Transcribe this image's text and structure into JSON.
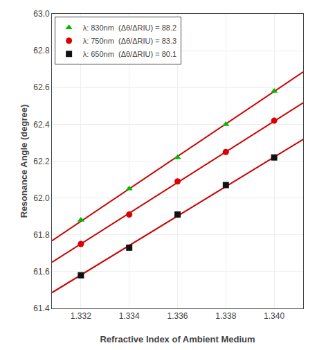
{
  "chart_data": {
    "type": "scatter",
    "xlabel": "Refractive Index of Ambient Medium",
    "ylabel": "Resonance Angle (degree)",
    "xlim": [
      1.3308,
      1.3412
    ],
    "ylim": [
      61.4,
      63.0
    ],
    "xticks": [
      1.332,
      1.334,
      1.336,
      1.338,
      {
        "value": 1.34,
        "label": "1.340"
      }
    ],
    "yticks": [
      61.4,
      61.6,
      61.8,
      {
        "value": 62.0,
        "label": "62.0"
      },
      62.2,
      62.4,
      62.6,
      62.8,
      {
        "value": 63.0,
        "label": "63.0"
      }
    ],
    "grid": true,
    "legend": "upper left",
    "series": [
      {
        "type": "line",
        "line_style": "solid",
        "color": "#cc0000",
        "x": [
          1.3308,
          1.3412
        ],
        "values": [
          61.76736,
          62.68464
        ]
      },
      {
        "type": "line",
        "line_style": "solid",
        "color": "#cc0000",
        "x": [
          1.3308,
          1.3412
        ],
        "values": [
          61.65084,
          62.51716
        ]
      },
      {
        "type": "line",
        "line_style": "solid",
        "color": "#cc0000",
        "x": [
          1.3308,
          1.3412
        ],
        "values": [
          61.48548,
          62.31852
        ]
      },
      {
        "type": "scatter",
        "name": "λ: 830nm  (Δθ/ΔRIU) = 88.2",
        "marker": "triangle-up",
        "color": "#00bb00",
        "x": [
          1.332,
          1.334,
          1.336,
          1.338,
          1.34
        ],
        "values": [
          61.88,
          62.05,
          62.22,
          62.4,
          62.58
        ]
      },
      {
        "type": "scatter",
        "name": "λ: 750nm  (Δθ/ΔRIU) = 83.3",
        "marker": "circle",
        "color": "#dd0000",
        "x": [
          1.332,
          1.334,
          1.336,
          1.338,
          1.34
        ],
        "values": [
          61.75,
          61.91,
          62.09,
          62.25,
          62.42
        ]
      },
      {
        "type": "scatter",
        "name": "λ: 650nm  (Δθ/ΔRIU) = 80.1",
        "marker": "square",
        "color": "#111111",
        "x": [
          1.332,
          1.334,
          1.336,
          1.338,
          1.34
        ],
        "values": [
          61.58,
          61.73,
          61.91,
          62.07,
          62.22
        ]
      }
    ]
  }
}
